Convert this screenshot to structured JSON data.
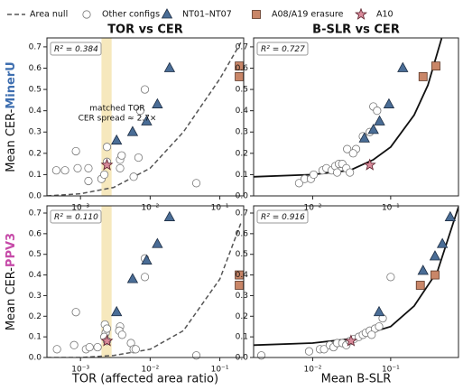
{
  "chart_data": [
    {
      "type": "scatter",
      "title": "TOR vs CER",
      "xscale": "log",
      "xlim": [
        0.00033,
        0.22
      ],
      "ylim": [
        0,
        0.742
      ],
      "xticks": [
        {
          "value": 0.001,
          "label": "10⁻³"
        },
        {
          "value": 0.01,
          "label": "10⁻²"
        },
        {
          "value": 0.1,
          "label": "10⁻¹"
        }
      ],
      "yticks": [
        {
          "value": 0,
          "label": "0.0"
        },
        0.1,
        0.2,
        0.3,
        0.4,
        0.5,
        0.6,
        0.7
      ],
      "ylabel": {
        "prefix": "Mean CER-",
        "name": "MinerU",
        "name_color": "#3f6fb0"
      },
      "r2_label": "R² = 0.384",
      "highlight_band": [
        0.002,
        0.0028
      ],
      "band_color": "#f6e8bd",
      "annotation": [
        "matched TOR",
        "CER spread ≈ 2.7×"
      ],
      "annotation_color": "#b08a1e",
      "series": [
        {
          "name": "Area null",
          "style": "dashed",
          "color": "#555555",
          "x": [
            0.00033,
            0.001,
            0.003,
            0.01,
            0.03,
            0.1,
            0.2
          ],
          "values": [
            0.0,
            0.01,
            0.04,
            0.13,
            0.3,
            0.55,
            0.72
          ]
        },
        {
          "name": "Other configs",
          "marker": "circle",
          "color": "#ffffff",
          "x": [
            0.00045,
            0.0006,
            0.00086,
            0.00091,
            0.0013,
            0.0013,
            0.002,
            0.0022,
            0.0024,
            0.0024,
            0.0037,
            0.0037,
            0.0039,
            0.0068,
            0.0058,
            0.0084,
            0.0072,
            0.046
          ],
          "values": [
            0.12,
            0.12,
            0.21,
            0.13,
            0.13,
            0.07,
            0.08,
            0.1,
            0.23,
            0.16,
            0.17,
            0.13,
            0.19,
            0.18,
            0.09,
            0.5,
            0.4,
            0.06
          ]
        },
        {
          "name": "NT01–NT07",
          "marker": "triangle",
          "color": "#4a6d96",
          "x": [
            0.0033,
            0.0056,
            0.0089,
            0.0127,
            0.019
          ],
          "values": [
            0.26,
            0.3,
            0.35,
            0.43,
            0.6
          ]
        },
        {
          "name": "A08/A19 erasure",
          "marker": "square",
          "color": "#c98668",
          "x": [
            0.19,
            0.19
          ],
          "values": [
            0.61,
            0.56
          ]
        },
        {
          "name": "A10",
          "marker": "star",
          "color": "#d88a9a",
          "x": [
            0.0024
          ],
          "values": [
            0.145
          ]
        }
      ]
    },
    {
      "type": "scatter",
      "title": "B-SLR vs CER",
      "xscale": "log",
      "xlim": [
        0.00175,
        0.74
      ],
      "ylim": [
        0,
        0.742
      ],
      "xticks": [
        {
          "value": 0.01,
          "label": "10⁻²"
        },
        {
          "value": 0.1,
          "label": "10⁻¹"
        }
      ],
      "yticks": [
        {
          "value": 0,
          "label": "0.0"
        },
        0.1,
        0.2,
        0.3,
        0.4,
        0.5,
        0.6,
        0.7
      ],
      "r2_label": "R² = 0.727",
      "series": [
        {
          "style": "solid",
          "color": "#111111",
          "x": [
            0.00175,
            0.01,
            0.03,
            0.06,
            0.1,
            0.2,
            0.3,
            0.45
          ],
          "values": [
            0.09,
            0.1,
            0.12,
            0.17,
            0.23,
            0.38,
            0.52,
            0.74
          ]
        },
        {
          "marker": "circle",
          "color": "#ffffff",
          "x": [
            0.0067,
            0.0079,
            0.0095,
            0.0103,
            0.0134,
            0.015,
            0.0175,
            0.0195,
            0.0217,
            0.024,
            0.027,
            0.03,
            0.0206,
            0.036,
            0.044,
            0.054,
            0.06,
            0.067,
            0.0277,
            0.033
          ],
          "values": [
            0.06,
            0.08,
            0.08,
            0.1,
            0.12,
            0.13,
            0.12,
            0.14,
            0.15,
            0.15,
            0.13,
            0.11,
            0.11,
            0.22,
            0.28,
            0.3,
            0.42,
            0.4,
            0.22,
            0.2
          ]
        },
        {
          "marker": "triangle",
          "color": "#4a6d96",
          "x": [
            0.046,
            0.06,
            0.072,
            0.095,
            0.143
          ],
          "values": [
            0.27,
            0.31,
            0.35,
            0.43,
            0.6
          ]
        },
        {
          "marker": "square",
          "color": "#c98668",
          "x": [
            0.26,
            0.38
          ],
          "values": [
            0.56,
            0.61
          ]
        },
        {
          "marker": "star",
          "color": "#d88a9a",
          "x": [
            0.054
          ],
          "values": [
            0.145
          ]
        }
      ]
    },
    {
      "type": "scatter",
      "xlabel": "TOR (affected area ratio)",
      "xscale": "log",
      "xlim": [
        0.00033,
        0.22
      ],
      "ylim": [
        0,
        0.735
      ],
      "xticks": [
        {
          "value": 0.001,
          "label": "10⁻³"
        },
        {
          "value": 0.01,
          "label": "10⁻²"
        },
        {
          "value": 0.1,
          "label": "10⁻¹"
        }
      ],
      "yticks": [
        {
          "value": 0,
          "label": "0.0"
        },
        0.1,
        0.2,
        0.3,
        0.4,
        0.5,
        0.6,
        0.7
      ],
      "ylabel": {
        "prefix": "Mean CER-",
        "name": "PPV3",
        "name_color": "#c64aa8"
      },
      "r2_label": "R² = 0.110",
      "highlight_band": [
        0.002,
        0.0028
      ],
      "band_color": "#f6e8bd",
      "series": [
        {
          "style": "dashed",
          "color": "#555555",
          "x": [
            0.00033,
            0.001,
            0.003,
            0.01,
            0.03,
            0.1,
            0.2
          ],
          "values": [
            0.0,
            0.0,
            0.01,
            0.04,
            0.13,
            0.38,
            0.65
          ]
        },
        {
          "marker": "circle",
          "color": "#ffffff",
          "x": [
            0.00046,
            0.00081,
            0.00086,
            0.0012,
            0.00135,
            0.00176,
            0.00224,
            0.0023,
            0.0024,
            0.0022,
            0.0024,
            0.0037,
            0.0036,
            0.00396,
            0.0053,
            0.0058,
            0.0084,
            0.0084,
            0.0062,
            0.046
          ],
          "values": [
            0.04,
            0.06,
            0.22,
            0.04,
            0.05,
            0.05,
            0.16,
            0.12,
            0.14,
            0.1,
            0.08,
            0.15,
            0.13,
            0.11,
            0.07,
            0.04,
            0.48,
            0.39,
            0.04,
            0.01
          ]
        },
        {
          "marker": "triangle",
          "color": "#4a6d96",
          "x": [
            0.0033,
            0.0056,
            0.0089,
            0.0127,
            0.019
          ],
          "values": [
            0.22,
            0.38,
            0.47,
            0.55,
            0.68
          ]
        },
        {
          "marker": "square",
          "color": "#c98668",
          "x": [
            0.19,
            0.19
          ],
          "values": [
            0.4,
            0.35
          ]
        },
        {
          "marker": "star",
          "color": "#d88a9a",
          "x": [
            0.0024
          ],
          "values": [
            0.08
          ]
        }
      ]
    },
    {
      "type": "scatter",
      "xlabel": "Mean B-SLR",
      "xscale": "log",
      "xlim": [
        0.00175,
        0.74
      ],
      "ylim": [
        0,
        0.735
      ],
      "xticks": [
        {
          "value": 0.01,
          "label": "10⁻²"
        },
        {
          "value": 0.1,
          "label": "10⁻¹"
        }
      ],
      "yticks": [
        {
          "value": 0,
          "label": "0.0"
        },
        0.1,
        0.2,
        0.3,
        0.4,
        0.5,
        0.6,
        0.7
      ],
      "r2_label": "R² = 0.916",
      "series": [
        {
          "style": "solid",
          "color": "#111111",
          "x": [
            0.00175,
            0.01,
            0.03,
            0.1,
            0.2,
            0.4,
            0.74
          ],
          "values": [
            0.06,
            0.07,
            0.09,
            0.15,
            0.25,
            0.42,
            0.73
          ]
        },
        {
          "marker": "circle",
          "color": "#ffffff",
          "x": [
            0.0022,
            0.009,
            0.0124,
            0.014,
            0.0166,
            0.0185,
            0.0206,
            0.024,
            0.027,
            0.03,
            0.034,
            0.039,
            0.044,
            0.048,
            0.054,
            0.063,
            0.071,
            0.079,
            0.1,
            0.057
          ],
          "values": [
            0.01,
            0.03,
            0.04,
            0.04,
            0.06,
            0.05,
            0.07,
            0.07,
            0.06,
            0.08,
            0.09,
            0.1,
            0.11,
            0.12,
            0.13,
            0.14,
            0.15,
            0.19,
            0.39,
            0.11
          ]
        },
        {
          "marker": "triangle",
          "color": "#4a6d96",
          "x": [
            0.071,
            0.26,
            0.37,
            0.46,
            0.58
          ],
          "values": [
            0.22,
            0.42,
            0.49,
            0.55,
            0.68
          ]
        },
        {
          "marker": "square",
          "color": "#c98668",
          "x": [
            0.24,
            0.37
          ],
          "values": [
            0.35,
            0.4
          ]
        },
        {
          "marker": "star",
          "color": "#d88a9a",
          "x": [
            0.031
          ],
          "values": [
            0.08
          ]
        }
      ]
    }
  ]
}
